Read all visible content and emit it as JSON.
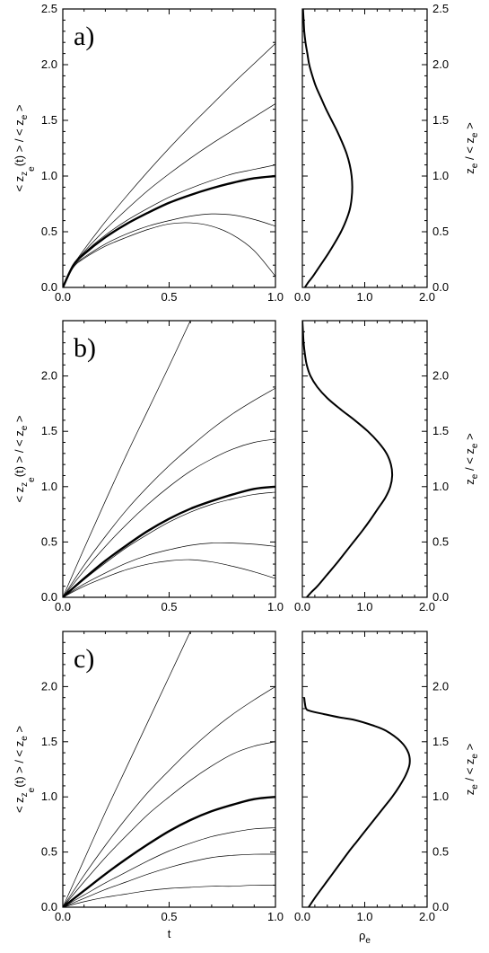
{
  "chart_data": [
    {
      "type": "line",
      "panel": "a)",
      "xlabel": "",
      "ylabel": "<z_{z_e}(t)>/<z_e>",
      "xlim": [
        0,
        1
      ],
      "ylim": [
        0,
        2.5
      ],
      "xticks": [
        "0.0",
        "0.5",
        "1.0"
      ],
      "yticks": [
        "0.0",
        "0.5",
        "1.0",
        "1.5",
        "2.0",
        "2.5"
      ],
      "thick_series": {
        "x": [
          0,
          0.05,
          0.1,
          0.2,
          0.3,
          0.4,
          0.5,
          0.6,
          0.7,
          0.8,
          0.9,
          1.0
        ],
        "y": [
          0,
          0.2,
          0.3,
          0.45,
          0.57,
          0.67,
          0.76,
          0.83,
          0.89,
          0.94,
          0.98,
          1.0
        ]
      },
      "series": [
        {
          "x": [
            0,
            0.05,
            0.1,
            0.2,
            0.3,
            0.4,
            0.5,
            0.6,
            0.7,
            0.8,
            0.9,
            1.0
          ],
          "y": [
            0,
            0.2,
            0.34,
            0.59,
            0.82,
            1.04,
            1.25,
            1.45,
            1.64,
            1.83,
            2.01,
            2.19
          ]
        },
        {
          "x": [
            0,
            0.05,
            0.1,
            0.2,
            0.3,
            0.4,
            0.5,
            0.6,
            0.7,
            0.8,
            0.9,
            1.0
          ],
          "y": [
            0,
            0.2,
            0.32,
            0.52,
            0.7,
            0.87,
            1.02,
            1.16,
            1.29,
            1.41,
            1.53,
            1.65
          ]
        },
        {
          "x": [
            0,
            0.05,
            0.1,
            0.2,
            0.3,
            0.4,
            0.5,
            0.6,
            0.7,
            0.8,
            0.9,
            1.0
          ],
          "y": [
            0,
            0.2,
            0.31,
            0.47,
            0.6,
            0.71,
            0.81,
            0.89,
            0.96,
            1.02,
            1.06,
            1.1
          ]
        },
        {
          "x": [
            0,
            0.05,
            0.1,
            0.2,
            0.3,
            0.4,
            0.5,
            0.6,
            0.7,
            0.8,
            0.9,
            1.0
          ],
          "y": [
            0,
            0.19,
            0.27,
            0.39,
            0.48,
            0.55,
            0.6,
            0.64,
            0.66,
            0.65,
            0.61,
            0.55
          ]
        },
        {
          "x": [
            0,
            0.05,
            0.1,
            0.2,
            0.3,
            0.4,
            0.5,
            0.6,
            0.7,
            0.8,
            0.9,
            1.0
          ],
          "y": [
            0,
            0.18,
            0.26,
            0.37,
            0.45,
            0.52,
            0.57,
            0.58,
            0.55,
            0.47,
            0.33,
            0.1
          ]
        }
      ],
      "density": {
        "xlabel": "",
        "ylabel": "z_e/<z_e>",
        "xlim": [
          0,
          2
        ],
        "ylim": [
          0,
          2.5
        ],
        "xticks": [
          "0.0",
          "1.0",
          "2.0"
        ],
        "yticks": [
          "0.0",
          "0.5",
          "1.0",
          "1.5",
          "2.0",
          "2.5"
        ],
        "z": [
          0,
          0.05,
          0.1,
          0.2,
          0.3,
          0.4,
          0.5,
          0.6,
          0.7,
          0.8,
          0.9,
          1.0,
          1.1,
          1.2,
          1.3,
          1.4,
          1.5,
          1.6,
          1.7,
          1.8,
          1.9,
          2.0,
          2.1,
          2.2,
          2.3,
          2.4,
          2.5
        ],
        "rho": [
          0.04,
          0.1,
          0.17,
          0.29,
          0.41,
          0.52,
          0.62,
          0.7,
          0.76,
          0.79,
          0.8,
          0.79,
          0.76,
          0.71,
          0.64,
          0.56,
          0.47,
          0.38,
          0.3,
          0.22,
          0.16,
          0.11,
          0.08,
          0.05,
          0.03,
          0.02,
          0.01
        ]
      }
    },
    {
      "type": "line",
      "panel": "b)",
      "xlabel": "",
      "ylabel": "<z_{z_e}(t)>/<z_e>",
      "xlim": [
        0,
        1
      ],
      "ylim": [
        0,
        2.5
      ],
      "xticks": [
        "0.0",
        "0.5",
        "1.0"
      ],
      "yticks": [
        "0.0",
        "0.5",
        "1.0",
        "1.5",
        "2.0"
      ],
      "thick_series": {
        "x": [
          0,
          0.1,
          0.2,
          0.3,
          0.4,
          0.5,
          0.6,
          0.7,
          0.8,
          0.9,
          1.0
        ],
        "y": [
          0,
          0.17,
          0.33,
          0.47,
          0.6,
          0.71,
          0.8,
          0.87,
          0.93,
          0.98,
          1.0
        ]
      },
      "series": [
        {
          "x": [
            0,
            0.1,
            0.2,
            0.3,
            0.4,
            0.5,
            0.6
          ],
          "y": [
            0,
            0.44,
            0.87,
            1.29,
            1.69,
            2.09,
            2.5
          ]
        },
        {
          "x": [
            0,
            0.1,
            0.2,
            0.3,
            0.4,
            0.5,
            0.6,
            0.7,
            0.8,
            0.9,
            1.0
          ],
          "y": [
            0,
            0.29,
            0.55,
            0.79,
            1.0,
            1.19,
            1.36,
            1.52,
            1.66,
            1.78,
            1.89
          ]
        },
        {
          "x": [
            0,
            0.1,
            0.2,
            0.3,
            0.4,
            0.5,
            0.6,
            0.7,
            0.8,
            0.9,
            1.0
          ],
          "y": [
            0,
            0.24,
            0.46,
            0.66,
            0.84,
            1.0,
            1.14,
            1.25,
            1.34,
            1.4,
            1.43
          ]
        },
        {
          "x": [
            0,
            0.1,
            0.2,
            0.3,
            0.4,
            0.5,
            0.6,
            0.7,
            0.8,
            0.9,
            1.0
          ],
          "y": [
            0,
            0.16,
            0.31,
            0.45,
            0.57,
            0.68,
            0.77,
            0.84,
            0.89,
            0.93,
            0.95
          ]
        },
        {
          "x": [
            0,
            0.1,
            0.2,
            0.3,
            0.4,
            0.5,
            0.6,
            0.7,
            0.8,
            0.9,
            1.0
          ],
          "y": [
            0,
            0.12,
            0.22,
            0.31,
            0.38,
            0.43,
            0.47,
            0.49,
            0.49,
            0.48,
            0.46
          ]
        },
        {
          "x": [
            0,
            0.1,
            0.2,
            0.3,
            0.4,
            0.5,
            0.6,
            0.7,
            0.8,
            0.9,
            1.0
          ],
          "y": [
            0,
            0.1,
            0.18,
            0.25,
            0.3,
            0.33,
            0.34,
            0.32,
            0.28,
            0.23,
            0.17
          ]
        }
      ],
      "density": {
        "xlabel": "",
        "ylabel": "z_e/<z_e>",
        "xlim": [
          0,
          2
        ],
        "ylim": [
          0,
          2.5
        ],
        "xticks": [
          "0.0",
          "1.0",
          "2.0"
        ],
        "yticks": [
          "0.0",
          "0.5",
          "1.0",
          "1.5",
          "2.0"
        ],
        "z": [
          0,
          0.05,
          0.1,
          0.2,
          0.3,
          0.4,
          0.5,
          0.6,
          0.7,
          0.8,
          0.9,
          1.0,
          1.1,
          1.2,
          1.3,
          1.4,
          1.5,
          1.6,
          1.7,
          1.8,
          1.9,
          2.0,
          2.1,
          2.2,
          2.3,
          2.4,
          2.5
        ],
        "rho": [
          0.07,
          0.15,
          0.24,
          0.39,
          0.54,
          0.68,
          0.82,
          0.96,
          1.09,
          1.21,
          1.33,
          1.41,
          1.44,
          1.42,
          1.35,
          1.22,
          1.05,
          0.84,
          0.61,
          0.4,
          0.24,
          0.13,
          0.07,
          0.04,
          0.02,
          0.01,
          0.0
        ]
      }
    },
    {
      "type": "line",
      "panel": "c)",
      "xlabel": "t",
      "ylabel": "<z_{z_e}(t)>/<z_e>",
      "xlim": [
        0,
        1
      ],
      "ylim": [
        0,
        2.5
      ],
      "xticks": [
        "0.0",
        "0.5",
        "1.0"
      ],
      "yticks": [
        "0.0",
        "0.5",
        "1.0",
        "1.5",
        "2.0"
      ],
      "thick_series": {
        "x": [
          0,
          0.1,
          0.2,
          0.3,
          0.4,
          0.5,
          0.6,
          0.7,
          0.8,
          0.9,
          1.0
        ],
        "y": [
          0,
          0.15,
          0.3,
          0.44,
          0.57,
          0.69,
          0.79,
          0.87,
          0.93,
          0.98,
          1.0
        ]
      },
      "series": [
        {
          "x": [
            0,
            0.1,
            0.2,
            0.3,
            0.4,
            0.5,
            0.6
          ],
          "y": [
            0,
            0.43,
            0.86,
            1.27,
            1.68,
            2.09,
            2.5
          ]
        },
        {
          "x": [
            0,
            0.1,
            0.2,
            0.3,
            0.4,
            0.5,
            0.6,
            0.7,
            0.8,
            0.9,
            1.0
          ],
          "y": [
            0,
            0.29,
            0.56,
            0.81,
            1.04,
            1.24,
            1.43,
            1.6,
            1.75,
            1.88,
            2.0
          ]
        },
        {
          "x": [
            0,
            0.1,
            0.2,
            0.3,
            0.4,
            0.5,
            0.6,
            0.7,
            0.8,
            0.9,
            1.0
          ],
          "y": [
            0,
            0.23,
            0.45,
            0.65,
            0.84,
            1.0,
            1.15,
            1.28,
            1.39,
            1.46,
            1.5
          ]
        },
        {
          "x": [
            0,
            0.1,
            0.2,
            0.3,
            0.4,
            0.5,
            0.6,
            0.7,
            0.8,
            0.9,
            1.0
          ],
          "y": [
            0,
            0.11,
            0.22,
            0.32,
            0.42,
            0.51,
            0.58,
            0.64,
            0.68,
            0.71,
            0.72
          ]
        },
        {
          "x": [
            0,
            0.1,
            0.2,
            0.3,
            0.4,
            0.5,
            0.6,
            0.7,
            0.8,
            0.9,
            1.0
          ],
          "y": [
            0,
            0.08,
            0.16,
            0.23,
            0.3,
            0.36,
            0.41,
            0.45,
            0.47,
            0.48,
            0.48
          ]
        },
        {
          "x": [
            0,
            0.1,
            0.2,
            0.3,
            0.4,
            0.5,
            0.6,
            0.7,
            0.8,
            0.9,
            1.0
          ],
          "y": [
            0,
            0.05,
            0.09,
            0.12,
            0.15,
            0.17,
            0.18,
            0.19,
            0.19,
            0.2,
            0.2
          ]
        }
      ],
      "density": {
        "xlabel": "ρe",
        "ylabel": "z_e/<z_e>",
        "xlim": [
          0,
          2
        ],
        "ylim": [
          0,
          2.5
        ],
        "xticks": [
          "0.0",
          "1.0",
          "2.0"
        ],
        "yticks": [
          "0.0",
          "0.5",
          "1.0",
          "1.5",
          "2.0"
        ],
        "z": [
          0,
          0.1,
          0.2,
          0.3,
          0.4,
          0.5,
          0.6,
          0.7,
          0.8,
          0.9,
          1.0,
          1.1,
          1.2,
          1.3,
          1.4,
          1.5,
          1.6,
          1.65,
          1.7,
          1.72,
          1.75,
          1.78,
          1.8,
          1.85,
          1.9
        ],
        "rho": [
          0.1,
          0.22,
          0.35,
          0.48,
          0.61,
          0.74,
          0.88,
          1.02,
          1.16,
          1.3,
          1.44,
          1.56,
          1.66,
          1.72,
          1.7,
          1.58,
          1.34,
          1.12,
          0.82,
          0.6,
          0.35,
          0.12,
          0.06,
          0.04,
          0.03
        ]
      }
    }
  ]
}
